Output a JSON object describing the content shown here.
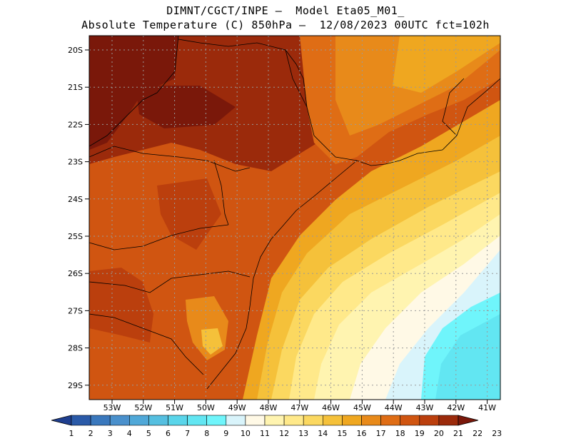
{
  "title": {
    "line1": "DIMNT/CGCT/INPE –  Model Eta05_M01_",
    "line2": "Absolute Temperature (C) 850hPa –  12/08/2023 00UTC fct=102h"
  },
  "map": {
    "lat_labels": [
      "20S",
      "21S",
      "22S",
      "23S",
      "24S",
      "25S",
      "26S",
      "27S",
      "28S",
      "29S"
    ],
    "lon_labels": [
      "53W",
      "52W",
      "51W",
      "50W",
      "49W",
      "48W",
      "47W",
      "46W",
      "45W",
      "44W",
      "43W",
      "42W",
      "41W"
    ]
  },
  "colorbar": {
    "labels": [
      "1",
      "2",
      "3",
      "4",
      "5",
      "6",
      "7",
      "8",
      "9",
      "10",
      "11",
      "12",
      "13",
      "14",
      "15",
      "16",
      "17",
      "18",
      "19",
      "20",
      "21",
      "22",
      "23"
    ],
    "colors": [
      "#1f3f8f",
      "#2a5aa8",
      "#3a78bd",
      "#4a90cc",
      "#50a8d8",
      "#55bfe0",
      "#5ad5ea",
      "#62e6f2",
      "#6ff5fb",
      "#d9f4fb",
      "#fff9e6",
      "#fff4b0",
      "#ffe98a",
      "#fbd860",
      "#f5c13a",
      "#efa720",
      "#e88a1a",
      "#df6d15",
      "#d05511",
      "#bb3f0d",
      "#9b2a0b",
      "#7a180a"
    ]
  }
}
